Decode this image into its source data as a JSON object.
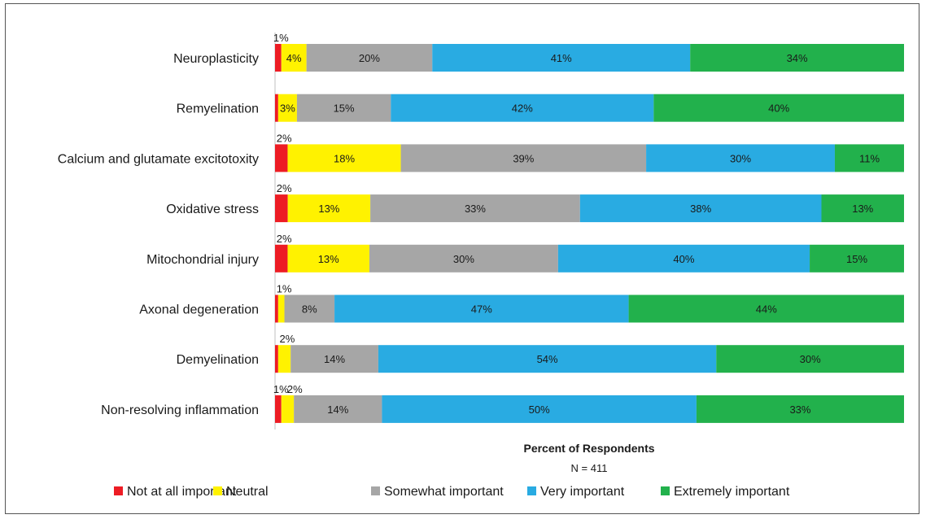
{
  "chart_data": {
    "type": "bar",
    "orientation": "horizontal",
    "stacked": true,
    "categories": [
      "Neuroplasticity",
      "Remyelination",
      "Calcium and glutamate excitotoxity",
      "Oxidative stress",
      "Mitochondrial injury",
      "Axonal degeneration",
      "Demyelination",
      "Non-resolving inflammation"
    ],
    "series": [
      {
        "name": "Not at all important",
        "color": "#ed1c24",
        "values": [
          1,
          0.5,
          2,
          2,
          2,
          0.5,
          0.5,
          1
        ],
        "labels": [
          "1%",
          "",
          "2%",
          "2%",
          "2%",
          "",
          "",
          "1%"
        ]
      },
      {
        "name": "Neutral",
        "color": "#fff200",
        "values": [
          4,
          3,
          18,
          13,
          13,
          1,
          2,
          2
        ],
        "labels": [
          "4%",
          "3%",
          "18%",
          "13%",
          "13%",
          "1%",
          "2%",
          "2%"
        ]
      },
      {
        "name": "Somewhat important",
        "color": "#a6a6a6",
        "values": [
          20,
          15,
          39,
          33,
          30,
          8,
          14,
          14
        ],
        "labels": [
          "20%",
          "15%",
          "39%",
          "33%",
          "30%",
          "8%",
          "14%",
          "14%"
        ]
      },
      {
        "name": "Very important",
        "color": "#29abe2",
        "values": [
          41,
          42,
          30,
          38,
          40,
          47,
          54,
          50
        ],
        "labels": [
          "41%",
          "42%",
          "30%",
          "38%",
          "40%",
          "47%",
          "54%",
          "50%"
        ]
      },
      {
        "name": "Extremely important",
        "color": "#22b14c",
        "values": [
          34,
          40,
          11,
          13,
          15,
          44,
          30,
          33
        ],
        "labels": [
          "34%",
          "40%",
          "11%",
          "13%",
          "15%",
          "44%",
          "30%",
          "33%"
        ]
      }
    ],
    "xlabel": "Percent of Respondents",
    "note": "N = 411",
    "legend_position": "bottom",
    "grid": false
  }
}
